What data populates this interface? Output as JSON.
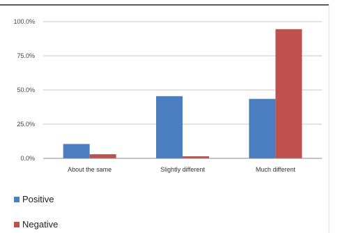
{
  "chart_data": {
    "type": "bar",
    "categories": [
      "About the same",
      "Slightly different",
      "Much different"
    ],
    "series": [
      {
        "name": "Positive",
        "values": [
          10.5,
          45.5,
          43.5
        ],
        "color": "#4A7EC0"
      },
      {
        "name": "Negative",
        "values": [
          3.0,
          1.5,
          94.5
        ],
        "color": "#C0504D"
      }
    ],
    "yticks": [
      "0.0%",
      "25.0%",
      "50.0%",
      "75.0%",
      "100.0%"
    ],
    "ylim": [
      0,
      100
    ],
    "grid": true,
    "legend_position": "bottom-left"
  }
}
